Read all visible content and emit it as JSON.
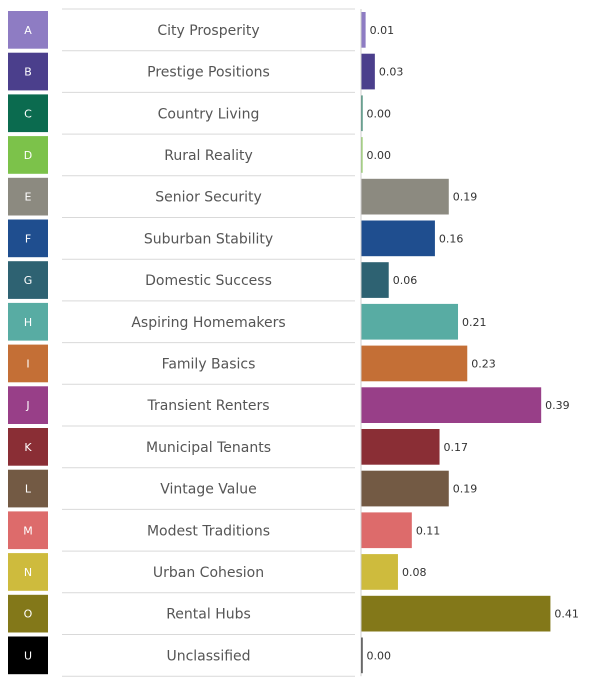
{
  "chart_data": {
    "type": "bar",
    "orientation": "horizontal",
    "xlim": [
      0,
      0.43
    ],
    "grid": false,
    "rows": [
      {
        "code": "A",
        "label": "City Prosperity",
        "value": 0.01,
        "value_label": "0.01",
        "color": "#8e7cc3"
      },
      {
        "code": "B",
        "label": "Prestige Positions",
        "value": 0.03,
        "value_label": "0.03",
        "color": "#4b3f8c"
      },
      {
        "code": "C",
        "label": "Country Living",
        "value": 0.0,
        "value_label": "0.00",
        "color": "#0b6b4f"
      },
      {
        "code": "D",
        "label": "Rural Reality",
        "value": 0.0,
        "value_label": "0.00",
        "color": "#7cc24a"
      },
      {
        "code": "E",
        "label": "Senior Security",
        "value": 0.19,
        "value_label": "0.19",
        "color": "#8c8a80"
      },
      {
        "code": "F",
        "label": "Suburban Stability",
        "value": 0.16,
        "value_label": "0.16",
        "color": "#1f4e8f"
      },
      {
        "code": "G",
        "label": "Domestic Success",
        "value": 0.06,
        "value_label": "0.06",
        "color": "#2e6272"
      },
      {
        "code": "H",
        "label": "Aspiring Homemakers",
        "value": 0.21,
        "value_label": "0.21",
        "color": "#58aca3"
      },
      {
        "code": "I",
        "label": "Family Basics",
        "value": 0.23,
        "value_label": "0.23",
        "color": "#c46f36"
      },
      {
        "code": "J",
        "label": "Transient Renters",
        "value": 0.39,
        "value_label": "0.39",
        "color": "#983f88"
      },
      {
        "code": "K",
        "label": "Municipal Tenants",
        "value": 0.17,
        "value_label": "0.17",
        "color": "#8a2e35"
      },
      {
        "code": "L",
        "label": "Vintage Value",
        "value": 0.19,
        "value_label": "0.19",
        "color": "#735a44"
      },
      {
        "code": "M",
        "label": "Modest Traditions",
        "value": 0.11,
        "value_label": "0.11",
        "color": "#dd6b6b"
      },
      {
        "code": "N",
        "label": "Urban Cohesion",
        "value": 0.08,
        "value_label": "0.08",
        "color": "#cebb3d"
      },
      {
        "code": "O",
        "label": "Rental Hubs",
        "value": 0.41,
        "value_label": "0.41",
        "color": "#837819"
      },
      {
        "code": "U",
        "label": "Unclassified",
        "value": 0.0,
        "value_label": "0.00",
        "color": "#000000"
      }
    ]
  }
}
